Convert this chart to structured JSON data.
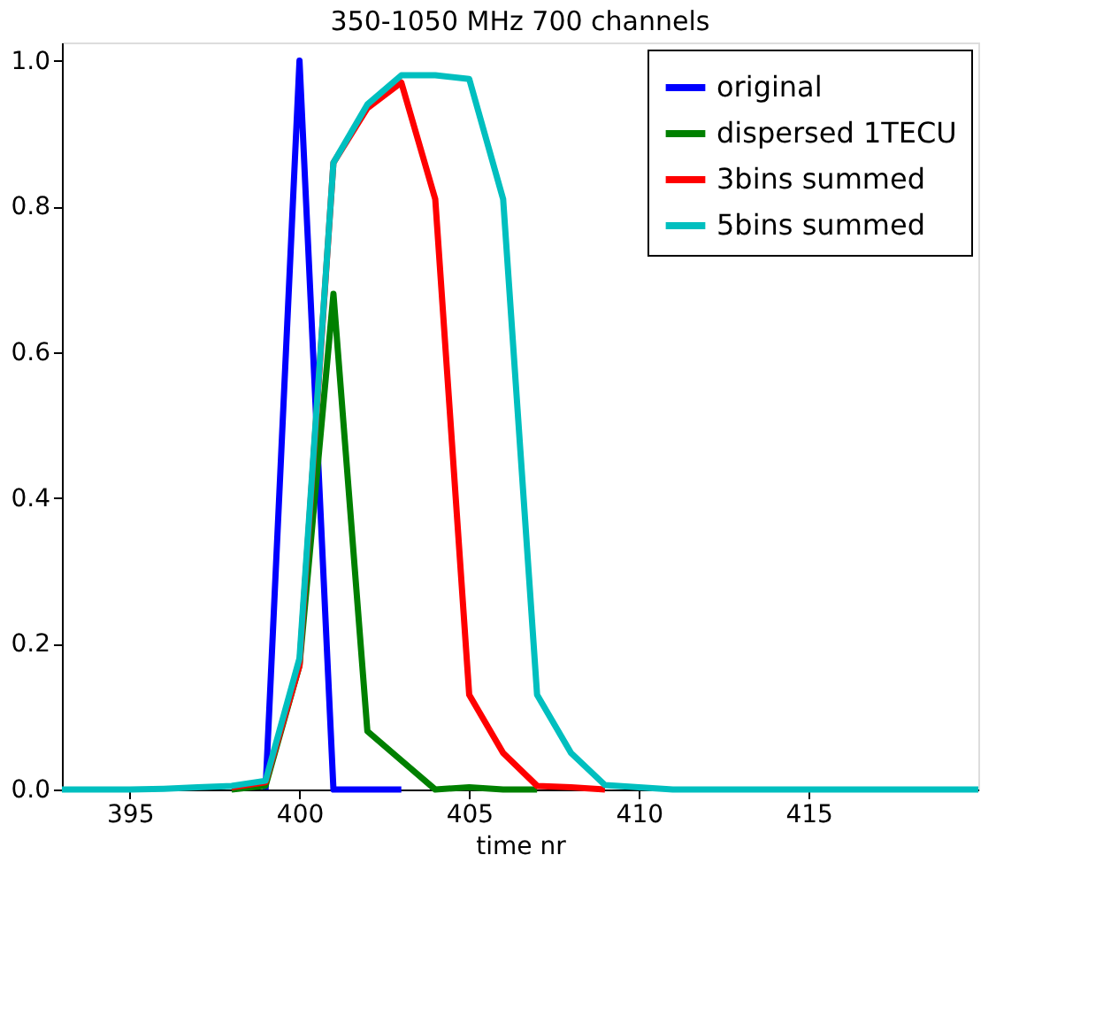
{
  "chart_data": {
    "type": "line",
    "title": "350-1050 MHz 700 channels",
    "xlabel": "time nr",
    "x": [
      393,
      394,
      395,
      396,
      397,
      398,
      399,
      400,
      401,
      402,
      403,
      404,
      405,
      406,
      407,
      408,
      409,
      410,
      411,
      412,
      413,
      414,
      415,
      416,
      417,
      418,
      419,
      420
    ],
    "series": [
      {
        "name": "original",
        "color": "#0000ff",
        "values": [
          null,
          null,
          null,
          null,
          null,
          null,
          0,
          1.0,
          0,
          0,
          0,
          null,
          null,
          null,
          null,
          null,
          null,
          null,
          null,
          null,
          null,
          null,
          null,
          null,
          null,
          null,
          null,
          null
        ]
      },
      {
        "name": "dispersed 1TECU",
        "color": "#008000",
        "values": [
          null,
          null,
          null,
          null,
          null,
          0,
          0.005,
          0.17,
          0.68,
          0.08,
          0.04,
          0,
          0.003,
          0,
          0,
          null,
          null,
          null,
          null,
          null,
          null,
          null,
          null,
          null,
          null,
          null,
          null,
          null
        ]
      },
      {
        "name": "3bins summed",
        "color": "#ff0000",
        "values": [
          null,
          null,
          null,
          null,
          null,
          0.003,
          0.01,
          0.17,
          0.86,
          0.935,
          0.97,
          0.81,
          0.13,
          0.05,
          0.005,
          0.003,
          0,
          null,
          null,
          null,
          null,
          null,
          null,
          null,
          null,
          null,
          null,
          null
        ]
      },
      {
        "name": "5bins summed",
        "color": "#00bfbf",
        "values": [
          0,
          0,
          0,
          0.001,
          0.003,
          0.005,
          0.012,
          0.18,
          0.86,
          0.94,
          0.98,
          0.98,
          0.975,
          0.81,
          0.13,
          0.05,
          0.006,
          0.003,
          0,
          0,
          0,
          0,
          0,
          0,
          0,
          0,
          0,
          0
        ]
      }
    ],
    "xlim": [
      393,
      420
    ],
    "xticks": [
      395,
      400,
      405,
      410,
      415
    ],
    "ylim": [
      0,
      1.025
    ],
    "yticks": [
      {
        "value": 0,
        "label": "0.0"
      },
      {
        "value": 0.2,
        "label": "0.2"
      },
      {
        "value": 0.4,
        "label": "0.4"
      },
      {
        "value": 0.6,
        "label": "0.6"
      },
      {
        "value": 0.8,
        "label": "0.8"
      },
      {
        "value": 1.0,
        "label": "1.0"
      }
    ],
    "legend": "top right",
    "grid": false,
    "line_style": "solid",
    "marker": "none"
  }
}
